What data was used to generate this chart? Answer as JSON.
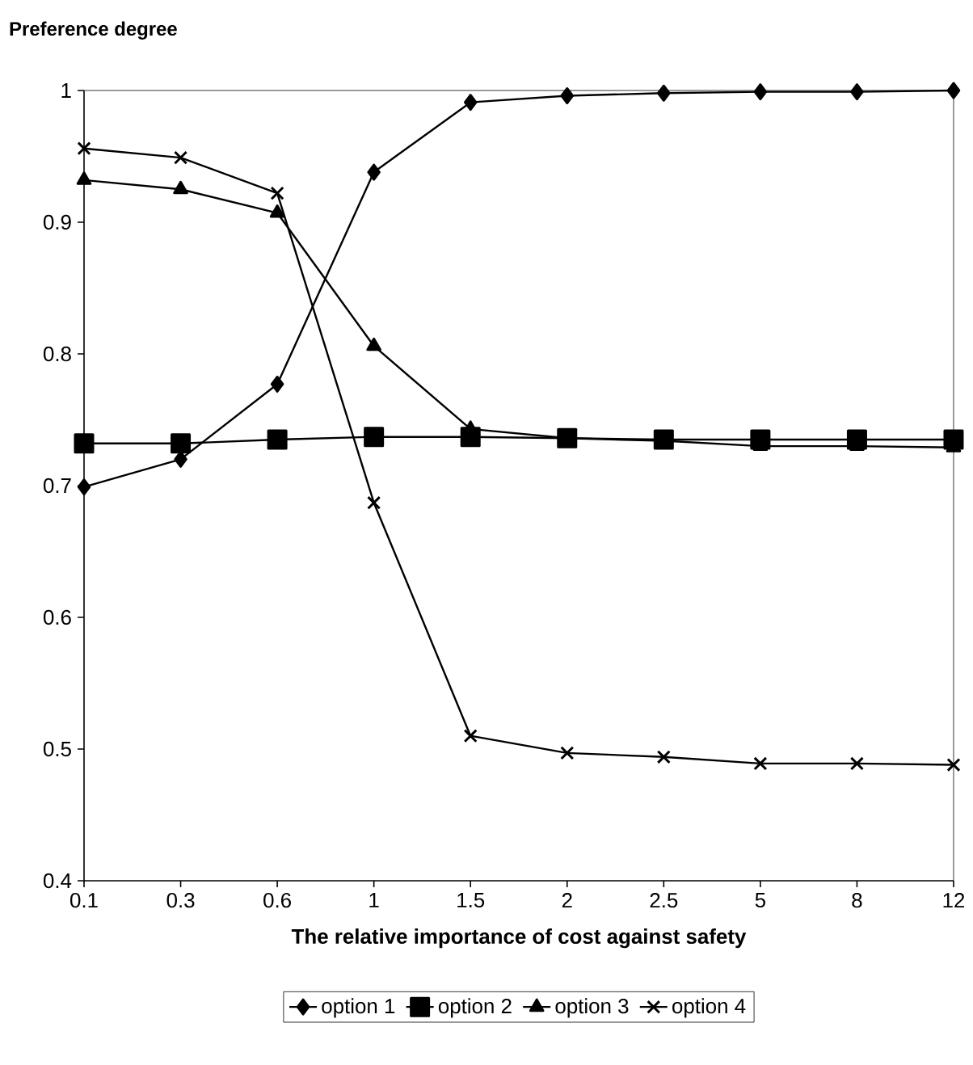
{
  "chart_data": {
    "type": "line",
    "ylabel": "Preference degree",
    "xlabel": "The relative importance of cost against safety",
    "categories": [
      "0.1",
      "0.3",
      "0.6",
      "1",
      "1.5",
      "2",
      "2.5",
      "5",
      "8",
      "12"
    ],
    "series": [
      {
        "name": "option 1",
        "color": "#000000",
        "marker": "diamond",
        "values": [
          0.699,
          0.72,
          0.777,
          0.938,
          0.991,
          0.996,
          0.998,
          0.999,
          0.999,
          1.0
        ]
      },
      {
        "name": "option 2",
        "color": "#000000",
        "marker": "square",
        "values": [
          0.732,
          0.732,
          0.735,
          0.737,
          0.737,
          0.736,
          0.735,
          0.735,
          0.735,
          0.735
        ]
      },
      {
        "name": "option 3",
        "color": "#000000",
        "marker": "triangle",
        "values": [
          0.932,
          0.925,
          0.907,
          0.806,
          0.743,
          0.736,
          0.734,
          0.73,
          0.73,
          0.729
        ]
      },
      {
        "name": "option 4",
        "color": "#000000",
        "marker": "cross",
        "values": [
          0.956,
          0.949,
          0.922,
          0.687,
          0.51,
          0.497,
          0.494,
          0.489,
          0.489,
          0.488
        ]
      }
    ],
    "ylim": [
      0.4,
      1
    ],
    "yticks": [
      0.4,
      0.5,
      0.6,
      0.7,
      0.8,
      0.9,
      1
    ],
    "grid": false,
    "legend": "bottom",
    "line_style": "solid"
  }
}
